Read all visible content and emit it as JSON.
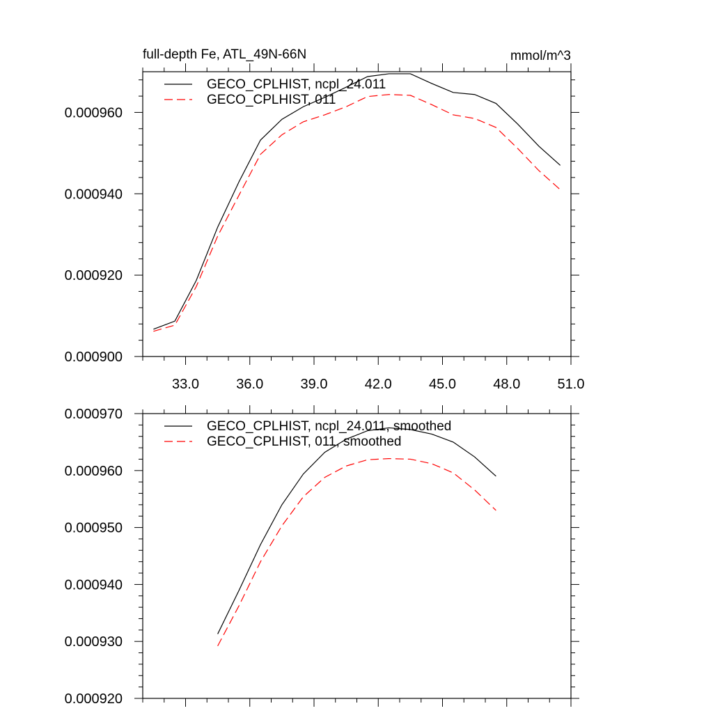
{
  "chart_data": [
    {
      "type": "line",
      "title": "full-depth Fe, ATL_49N-66N",
      "units": "mmol/m^3",
      "xlabel": "",
      "ylabel": "",
      "xlim": [
        31.0,
        51.0
      ],
      "ylim": [
        0.0009,
        0.00097
      ],
      "xticks": [
        "33.0",
        "36.0",
        "39.0",
        "42.0",
        "45.0",
        "48.0",
        "51.0"
      ],
      "yticks": [
        "0.000900",
        "0.000920",
        "0.000940",
        "0.000960"
      ],
      "legend_position": "top-left",
      "x": [
        31.5,
        32.5,
        33.5,
        34.5,
        35.5,
        36.5,
        37.5,
        38.5,
        39.5,
        40.5,
        41.5,
        42.5,
        43.5,
        44.5,
        45.5,
        46.5,
        47.5,
        48.5,
        49.5,
        50.5
      ],
      "series": [
        {
          "name": "GECO_CPLHIST, ncpl_24.011",
          "color": "#000000",
          "dash": "solid",
          "values": [
            0.0009067,
            0.0009087,
            0.0009187,
            0.0009318,
            0.000943,
            0.0009532,
            0.0009583,
            0.0009614,
            0.0009637,
            0.0009662,
            0.0009688,
            0.0009695,
            0.0009695,
            0.0009671,
            0.0009649,
            0.0009644,
            0.0009622,
            0.0009572,
            0.0009517,
            0.000947
          ]
        },
        {
          "name": "GECO_CPLHIST, 011",
          "color": "#ff0000",
          "dash": "dashed",
          "values": [
            0.0009062,
            0.0009077,
            0.0009172,
            0.0009296,
            0.0009397,
            0.0009497,
            0.0009545,
            0.0009577,
            0.0009594,
            0.0009614,
            0.0009639,
            0.0009644,
            0.0009642,
            0.0009619,
            0.0009594,
            0.0009585,
            0.0009563,
            0.0009512,
            0.0009457,
            0.000941
          ]
        }
      ]
    },
    {
      "type": "line",
      "title": "",
      "xlabel": "",
      "ylabel": "",
      "xlim": [
        31.0,
        51.0
      ],
      "ylim": [
        0.00092,
        0.00097
      ],
      "yticks": [
        "0.000920",
        "0.000930",
        "0.000940",
        "0.000950",
        "0.000960",
        "0.000970"
      ],
      "legend_position": "top-left",
      "x": [
        34.5,
        35.5,
        36.5,
        37.5,
        38.5,
        39.5,
        40.5,
        41.5,
        42.5,
        43.5,
        44.5,
        45.5,
        46.5,
        47.5
      ],
      "series": [
        {
          "name": "GECO_CPLHIST, ncpl_24.011, smoothed",
          "color": "#000000",
          "dash": "solid",
          "values": [
            0.0009313,
            0.000939,
            0.000947,
            0.000954,
            0.0009594,
            0.0009632,
            0.0009655,
            0.000967,
            0.0009675,
            0.0009672,
            0.0009664,
            0.000965,
            0.0009624,
            0.000959
          ]
        },
        {
          "name": "GECO_CPLHIST, 011, smoothed",
          "color": "#ff0000",
          "dash": "dashed",
          "values": [
            0.0009292,
            0.0009363,
            0.000944,
            0.0009503,
            0.0009554,
            0.0009588,
            0.0009608,
            0.0009619,
            0.0009621,
            0.000962,
            0.0009612,
            0.0009596,
            0.0009566,
            0.000953
          ]
        }
      ]
    }
  ]
}
